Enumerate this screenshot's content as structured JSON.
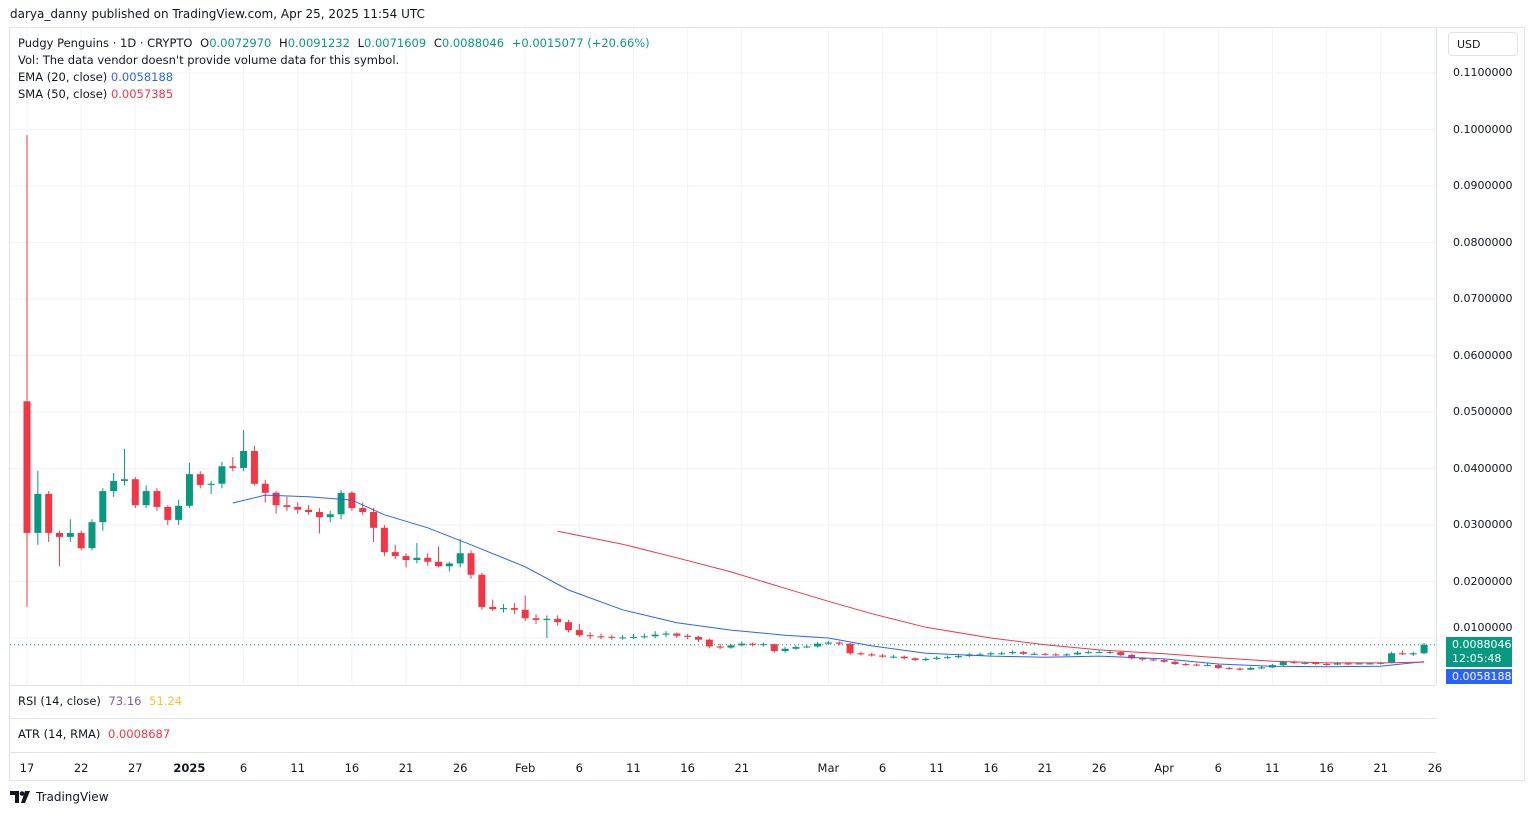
{
  "publisher_line": "darya_danny published on TradingView.com, Apr 25, 2025 11:54 UTC",
  "legend": {
    "symbol": "Pudgy Penguins · 1D · CRYPTO",
    "o_label": "O",
    "o": "0.0072970",
    "h_label": "H",
    "h": "0.0091232",
    "l_label": "L",
    "l": "0.0071609",
    "c_label": "C",
    "c": "0.0088046",
    "change": "+0.0015077 (+20.66%)",
    "vol": "Vol: The data vendor doesn't provide volume data for this symbol.",
    "ema_label": "EMA (20, close)",
    "ema_value": "0.0058188",
    "sma_label": "SMA (50, close)",
    "sma_value": "0.0057385"
  },
  "currency": "USD",
  "last_price_badge": {
    "price": "0.0088046",
    "countdown": "12:05:48"
  },
  "ema_badge": "0.0058188",
  "rsi": {
    "label": "RSI (14, close)",
    "value1": "73.16",
    "value2": "51.24"
  },
  "atr": {
    "label": "ATR (14, RMA)",
    "value": "0.0008687"
  },
  "footer": {
    "brand": "TradingView"
  },
  "colors": {
    "up": "#089981",
    "down": "#f23645",
    "ema": "#2962ff",
    "sma": "#f23645",
    "rsi1": "#7e57c2",
    "rsi2": "#fbc02d"
  },
  "chart_data": {
    "type": "candlestick",
    "interval": "1D",
    "start_date": "2024-12-17",
    "ylim": [
      0.0,
      0.11
    ],
    "price_ticks": [
      "0.1100000",
      "0.1000000",
      "0.0900000",
      "0.0800000",
      "0.0700000",
      "0.0600000",
      "0.0500000",
      "0.0400000",
      "0.0300000",
      "0.0200000",
      "0.0100000"
    ],
    "time_ticks": [
      {
        "label": "17",
        "date": "2024-12-17"
      },
      {
        "label": "22",
        "date": "2024-12-22"
      },
      {
        "label": "27",
        "date": "2024-12-27"
      },
      {
        "label": "2025",
        "date": "2025-01-01",
        "bold": true
      },
      {
        "label": "6",
        "date": "2025-01-06"
      },
      {
        "label": "11",
        "date": "2025-01-11"
      },
      {
        "label": "16",
        "date": "2025-01-16"
      },
      {
        "label": "21",
        "date": "2025-01-21"
      },
      {
        "label": "26",
        "date": "2025-01-26"
      },
      {
        "label": "Feb",
        "date": "2025-02-01"
      },
      {
        "label": "6",
        "date": "2025-02-06"
      },
      {
        "label": "11",
        "date": "2025-02-11"
      },
      {
        "label": "16",
        "date": "2025-02-16"
      },
      {
        "label": "21",
        "date": "2025-02-21"
      },
      {
        "label": "Mar",
        "date": "2025-03-01"
      },
      {
        "label": "6",
        "date": "2025-03-06"
      },
      {
        "label": "11",
        "date": "2025-03-11"
      },
      {
        "label": "16",
        "date": "2025-03-16"
      },
      {
        "label": "21",
        "date": "2025-03-21"
      },
      {
        "label": "26",
        "date": "2025-03-26"
      },
      {
        "label": "Apr",
        "date": "2025-04-01"
      },
      {
        "label": "6",
        "date": "2025-04-06"
      },
      {
        "label": "11",
        "date": "2025-04-11"
      },
      {
        "label": "16",
        "date": "2025-04-16"
      },
      {
        "label": "21",
        "date": "2025-04-21"
      },
      {
        "label": "26",
        "date": "2025-04-26"
      }
    ],
    "ohlc": [
      [
        0.0519,
        0.099,
        0.0155,
        0.0286
      ],
      [
        0.0286,
        0.0396,
        0.0265,
        0.0355
      ],
      [
        0.0355,
        0.036,
        0.027,
        0.0286
      ],
      [
        0.0286,
        0.029,
        0.0227,
        0.0279
      ],
      [
        0.0279,
        0.031,
        0.027,
        0.0286
      ],
      [
        0.0286,
        0.029,
        0.0255,
        0.0259
      ],
      [
        0.0259,
        0.031,
        0.0255,
        0.0305
      ],
      [
        0.0305,
        0.0365,
        0.029,
        0.036
      ],
      [
        0.036,
        0.0392,
        0.035,
        0.0378
      ],
      [
        0.0378,
        0.0435,
        0.037,
        0.0381
      ],
      [
        0.0381,
        0.0385,
        0.033,
        0.0335
      ],
      [
        0.0335,
        0.037,
        0.033,
        0.036
      ],
      [
        0.036,
        0.0365,
        0.0325,
        0.0332
      ],
      [
        0.0332,
        0.0335,
        0.03,
        0.0309
      ],
      [
        0.0309,
        0.0345,
        0.03,
        0.0334
      ],
      [
        0.0334,
        0.041,
        0.033,
        0.039
      ],
      [
        0.039,
        0.0395,
        0.0365,
        0.0371
      ],
      [
        0.0371,
        0.0378,
        0.0355,
        0.0373
      ],
      [
        0.0373,
        0.0412,
        0.0365,
        0.0404
      ],
      [
        0.0404,
        0.042,
        0.0395,
        0.0401
      ],
      [
        0.0401,
        0.0468,
        0.0395,
        0.0431
      ],
      [
        0.0431,
        0.044,
        0.037,
        0.0373
      ],
      [
        0.0373,
        0.038,
        0.034,
        0.0357
      ],
      [
        0.0357,
        0.036,
        0.032,
        0.0335
      ],
      [
        0.0335,
        0.035,
        0.0325,
        0.0332
      ],
      [
        0.0332,
        0.034,
        0.032,
        0.0327
      ],
      [
        0.0327,
        0.0335,
        0.0318,
        0.0323
      ],
      [
        0.0323,
        0.033,
        0.0285,
        0.0314
      ],
      [
        0.0314,
        0.0325,
        0.0305,
        0.0319
      ],
      [
        0.0319,
        0.0362,
        0.031,
        0.0357
      ],
      [
        0.0357,
        0.036,
        0.0325,
        0.033
      ],
      [
        0.033,
        0.034,
        0.0318,
        0.0323
      ],
      [
        0.0323,
        0.033,
        0.027,
        0.0295
      ],
      [
        0.0295,
        0.03,
        0.0245,
        0.0252
      ],
      [
        0.0252,
        0.0265,
        0.024,
        0.0245
      ],
      [
        0.0245,
        0.025,
        0.0225,
        0.0238
      ],
      [
        0.0238,
        0.0268,
        0.0232,
        0.0242
      ],
      [
        0.0242,
        0.025,
        0.0228,
        0.0235
      ],
      [
        0.0235,
        0.0262,
        0.0225,
        0.0227
      ],
      [
        0.0227,
        0.0235,
        0.0218,
        0.0232
      ],
      [
        0.0232,
        0.0275,
        0.0225,
        0.025
      ],
      [
        0.025,
        0.0255,
        0.0205,
        0.0212
      ],
      [
        0.0212,
        0.0215,
        0.015,
        0.0155
      ],
      [
        0.0155,
        0.0168,
        0.0148,
        0.0151
      ],
      [
        0.0151,
        0.016,
        0.0145,
        0.0153
      ],
      [
        0.0153,
        0.0162,
        0.0142,
        0.015
      ],
      [
        0.015,
        0.0175,
        0.013,
        0.0135
      ],
      [
        0.0135,
        0.0142,
        0.0125,
        0.0132
      ],
      [
        0.0132,
        0.014,
        0.01,
        0.0134
      ],
      [
        0.0134,
        0.014,
        0.0122,
        0.0128
      ],
      [
        0.0128,
        0.0132,
        0.011,
        0.0114
      ],
      [
        0.0114,
        0.0125,
        0.0102,
        0.0105
      ],
      [
        0.0105,
        0.011,
        0.0098,
        0.0103
      ],
      [
        0.0103,
        0.0108,
        0.0098,
        0.0102
      ],
      [
        0.0102,
        0.0106,
        0.0097,
        0.0101
      ],
      [
        0.0101,
        0.0105,
        0.0097,
        0.0101
      ],
      [
        0.0101,
        0.0107,
        0.0098,
        0.0102
      ],
      [
        0.0102,
        0.0108,
        0.0099,
        0.0103
      ],
      [
        0.0103,
        0.0112,
        0.01,
        0.0106
      ],
      [
        0.0106,
        0.0112,
        0.0102,
        0.0108
      ],
      [
        0.0108,
        0.011,
        0.01,
        0.0104
      ],
      [
        0.0104,
        0.0107,
        0.0098,
        0.0102
      ],
      [
        0.0102,
        0.0104,
        0.0093,
        0.0097
      ],
      [
        0.0097,
        0.0099,
        0.0082,
        0.0085
      ],
      [
        0.0085,
        0.009,
        0.008,
        0.0083
      ],
      [
        0.0083,
        0.009,
        0.0081,
        0.0087
      ],
      [
        0.0087,
        0.0094,
        0.0085,
        0.009
      ],
      [
        0.009,
        0.0092,
        0.0085,
        0.0088
      ],
      [
        0.0088,
        0.0092,
        0.0085,
        0.0089
      ],
      [
        0.0089,
        0.009,
        0.0074,
        0.0077
      ],
      [
        0.0077,
        0.0084,
        0.0074,
        0.0081
      ],
      [
        0.0081,
        0.0087,
        0.0079,
        0.0084
      ],
      [
        0.0084,
        0.0088,
        0.0082,
        0.0085
      ],
      [
        0.0085,
        0.0093,
        0.0083,
        0.009
      ],
      [
        0.009,
        0.0095,
        0.0088,
        0.0092
      ],
      [
        0.0092,
        0.0094,
        0.0087,
        0.009
      ],
      [
        0.009,
        0.0091,
        0.007,
        0.0073
      ],
      [
        0.0073,
        0.0076,
        0.0069,
        0.0071
      ],
      [
        0.0071,
        0.0074,
        0.0067,
        0.0069
      ],
      [
        0.0069,
        0.0072,
        0.0065,
        0.0067
      ],
      [
        0.0067,
        0.007,
        0.0064,
        0.0067
      ],
      [
        0.0067,
        0.0069,
        0.0062,
        0.0064
      ],
      [
        0.0064,
        0.0066,
        0.0059,
        0.0061
      ],
      [
        0.0061,
        0.0066,
        0.0059,
        0.0063
      ],
      [
        0.0063,
        0.0068,
        0.0061,
        0.0065
      ],
      [
        0.0065,
        0.0069,
        0.0063,
        0.0066
      ],
      [
        0.0066,
        0.0071,
        0.0064,
        0.0068
      ],
      [
        0.0068,
        0.0074,
        0.0066,
        0.0071
      ],
      [
        0.0071,
        0.0074,
        0.0068,
        0.0071
      ],
      [
        0.0071,
        0.0076,
        0.0069,
        0.0073
      ],
      [
        0.0073,
        0.0076,
        0.007,
        0.0073
      ],
      [
        0.0073,
        0.0078,
        0.0071,
        0.0075
      ],
      [
        0.0075,
        0.0077,
        0.007,
        0.0072
      ],
      [
        0.0072,
        0.0075,
        0.007,
        0.0072
      ],
      [
        0.0072,
        0.0074,
        0.0069,
        0.0071
      ],
      [
        0.0071,
        0.0073,
        0.0068,
        0.007
      ],
      [
        0.007,
        0.0073,
        0.0068,
        0.0071
      ],
      [
        0.0071,
        0.0077,
        0.007,
        0.0074
      ],
      [
        0.0074,
        0.0078,
        0.0072,
        0.0075
      ],
      [
        0.0075,
        0.0078,
        0.0073,
        0.0075
      ],
      [
        0.0075,
        0.0077,
        0.0072,
        0.0075
      ],
      [
        0.0075,
        0.0076,
        0.0068,
        0.007
      ],
      [
        0.007,
        0.0072,
        0.0062,
        0.0064
      ],
      [
        0.0064,
        0.0066,
        0.006,
        0.0062
      ],
      [
        0.0062,
        0.0064,
        0.0059,
        0.0061
      ],
      [
        0.0061,
        0.0063,
        0.0056,
        0.0058
      ],
      [
        0.0058,
        0.006,
        0.0052,
        0.0054
      ],
      [
        0.0054,
        0.0056,
        0.0051,
        0.0053
      ],
      [
        0.0053,
        0.0055,
        0.005,
        0.0052
      ],
      [
        0.0052,
        0.0055,
        0.005,
        0.0052
      ],
      [
        0.0052,
        0.0053,
        0.0045,
        0.0047
      ],
      [
        0.0047,
        0.0049,
        0.0044,
        0.0046
      ],
      [
        0.0046,
        0.0048,
        0.0042,
        0.0044
      ],
      [
        0.0044,
        0.0049,
        0.0043,
        0.0047
      ],
      [
        0.0047,
        0.005,
        0.0045,
        0.0048
      ],
      [
        0.0048,
        0.0054,
        0.0047,
        0.0052
      ],
      [
        0.0052,
        0.006,
        0.005,
        0.0058
      ],
      [
        0.0058,
        0.006,
        0.0054,
        0.0056
      ],
      [
        0.0056,
        0.0058,
        0.0053,
        0.0056
      ],
      [
        0.0056,
        0.0057,
        0.0052,
        0.0054
      ],
      [
        0.0054,
        0.0056,
        0.0051,
        0.0053
      ],
      [
        0.0053,
        0.0058,
        0.0052,
        0.0055
      ],
      [
        0.0055,
        0.0057,
        0.0052,
        0.0054
      ],
      [
        0.0054,
        0.0057,
        0.0053,
        0.0055
      ],
      [
        0.0055,
        0.0057,
        0.0053,
        0.0055
      ],
      [
        0.0055,
        0.0058,
        0.0053,
        0.0056
      ],
      [
        0.0056,
        0.0076,
        0.0055,
        0.0073
      ],
      [
        0.0073,
        0.0078,
        0.007,
        0.0071
      ],
      [
        0.0071,
        0.0076,
        0.0068,
        0.0073
      ],
      [
        0.007297,
        0.0091232,
        0.0071609,
        0.0088046
      ]
    ],
    "ema20": [
      [
        "2025-01-05",
        0.0339
      ],
      [
        "2025-01-08",
        0.0353
      ],
      [
        "2025-01-12",
        0.035
      ],
      [
        "2025-01-16",
        0.0344
      ],
      [
        "2025-01-19",
        0.0318
      ],
      [
        "2025-01-23",
        0.0295
      ],
      [
        "2025-01-27",
        0.0265
      ],
      [
        "2025-02-01",
        0.0226
      ],
      [
        "2025-02-05",
        0.0185
      ],
      [
        "2025-02-10",
        0.015
      ],
      [
        "2025-02-15",
        0.0127
      ],
      [
        "2025-02-20",
        0.0114
      ],
      [
        "2025-02-25",
        0.0105
      ],
      [
        "2025-03-01",
        0.01
      ],
      [
        "2025-03-05",
        0.0086
      ],
      [
        "2025-03-10",
        0.0073
      ],
      [
        "2025-03-16",
        0.0068
      ],
      [
        "2025-03-21",
        0.0066
      ],
      [
        "2025-03-26",
        0.0068
      ],
      [
        "2025-04-01",
        0.0063
      ],
      [
        "2025-04-06",
        0.0054
      ],
      [
        "2025-04-11",
        0.005
      ],
      [
        "2025-04-16",
        0.0049
      ],
      [
        "2025-04-21",
        0.005
      ],
      [
        "2025-04-25",
        0.0058188
      ]
    ],
    "sma50": [
      [
        "2025-02-04",
        0.0289
      ],
      [
        "2025-02-10",
        0.0266
      ],
      [
        "2025-02-15",
        0.0242
      ],
      [
        "2025-02-20",
        0.0217
      ],
      [
        "2025-02-25",
        0.0188
      ],
      [
        "2025-03-01",
        0.0165
      ],
      [
        "2025-03-05",
        0.0143
      ],
      [
        "2025-03-10",
        0.0119
      ],
      [
        "2025-03-16",
        0.01
      ],
      [
        "2025-03-21",
        0.0088
      ],
      [
        "2025-03-26",
        0.0079
      ],
      [
        "2025-04-01",
        0.0072
      ],
      [
        "2025-04-06",
        0.0065
      ],
      [
        "2025-04-11",
        0.0059
      ],
      [
        "2025-04-16",
        0.0056
      ],
      [
        "2025-04-21",
        0.0056
      ],
      [
        "2025-04-25",
        0.0057385
      ]
    ]
  }
}
